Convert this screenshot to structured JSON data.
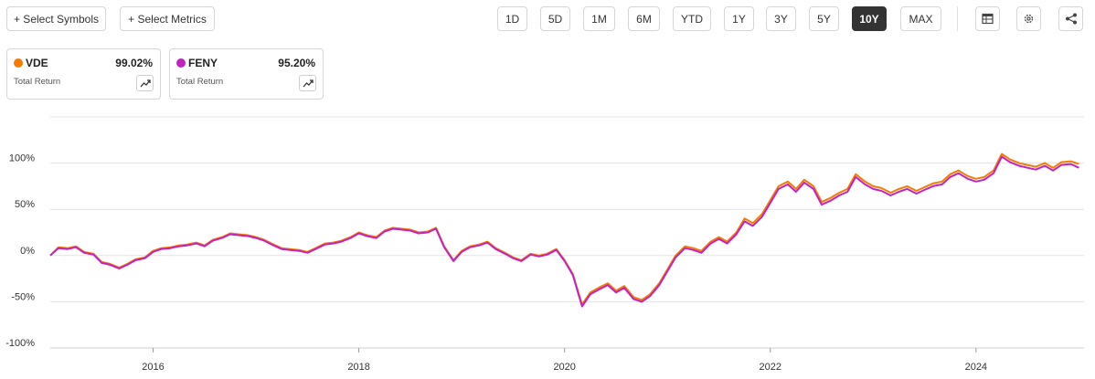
{
  "toolbar": {
    "select_symbols": "+ Select Symbols",
    "select_metrics": "+ Select Metrics",
    "ranges": [
      "1D",
      "5D",
      "1M",
      "6M",
      "YTD",
      "1Y",
      "3Y",
      "5Y",
      "10Y",
      "MAX"
    ],
    "active_range": "10Y",
    "icons": [
      "table-icon",
      "gear-icon",
      "share-icon"
    ]
  },
  "legend": [
    {
      "symbol": "VDE",
      "value": "99.02%",
      "metric": "Total Return",
      "color": "#f57c00"
    },
    {
      "symbol": "FENY",
      "value": "95.20%",
      "metric": "Total Return",
      "color": "#c322c3"
    }
  ],
  "chart_data": {
    "type": "line",
    "x_unit": "year",
    "xlim": [
      2015.0,
      2025.05
    ],
    "ylim": [
      -100,
      150
    ],
    "yticks": [
      -100,
      -50,
      0,
      50,
      100
    ],
    "ytick_labels": [
      "-100%",
      "-50%",
      "0%",
      "50%",
      "100%"
    ],
    "xticks": [
      2016,
      2018,
      2020,
      2022,
      2024
    ],
    "xtick_labels": [
      "2016",
      "2018",
      "2020",
      "2022",
      "2024"
    ],
    "grid": true,
    "series": [
      {
        "name": "VDE",
        "color": "#f57c00",
        "points": [
          [
            2015.0,
            0
          ],
          [
            2015.08,
            9
          ],
          [
            2015.17,
            8
          ],
          [
            2015.25,
            10
          ],
          [
            2015.33,
            4
          ],
          [
            2015.42,
            2
          ],
          [
            2015.5,
            -7
          ],
          [
            2015.58,
            -9
          ],
          [
            2015.67,
            -13
          ],
          [
            2015.75,
            -9
          ],
          [
            2015.83,
            -4
          ],
          [
            2015.92,
            -2
          ],
          [
            2016.0,
            5
          ],
          [
            2016.08,
            8
          ],
          [
            2016.17,
            9
          ],
          [
            2016.25,
            11
          ],
          [
            2016.33,
            12
          ],
          [
            2016.42,
            14
          ],
          [
            2016.5,
            11
          ],
          [
            2016.58,
            17
          ],
          [
            2016.67,
            20
          ],
          [
            2016.75,
            24
          ],
          [
            2016.83,
            23
          ],
          [
            2016.92,
            22
          ],
          [
            2017.0,
            20
          ],
          [
            2017.08,
            17
          ],
          [
            2017.17,
            12
          ],
          [
            2017.25,
            8
          ],
          [
            2017.33,
            7
          ],
          [
            2017.42,
            6
          ],
          [
            2017.5,
            4
          ],
          [
            2017.58,
            8
          ],
          [
            2017.67,
            13
          ],
          [
            2017.75,
            14
          ],
          [
            2017.83,
            16
          ],
          [
            2017.92,
            20
          ],
          [
            2018.0,
            25
          ],
          [
            2018.08,
            22
          ],
          [
            2018.17,
            20
          ],
          [
            2018.25,
            27
          ],
          [
            2018.33,
            30
          ],
          [
            2018.42,
            29
          ],
          [
            2018.5,
            28
          ],
          [
            2018.58,
            25
          ],
          [
            2018.67,
            26
          ],
          [
            2018.75,
            30
          ],
          [
            2018.83,
            10
          ],
          [
            2018.92,
            -5
          ],
          [
            2019.0,
            5
          ],
          [
            2019.08,
            10
          ],
          [
            2019.17,
            12
          ],
          [
            2019.25,
            15
          ],
          [
            2019.33,
            8
          ],
          [
            2019.42,
            3
          ],
          [
            2019.5,
            -2
          ],
          [
            2019.58,
            -5
          ],
          [
            2019.67,
            2
          ],
          [
            2019.75,
            0
          ],
          [
            2019.83,
            2
          ],
          [
            2019.92,
            7
          ],
          [
            2020.0,
            -5
          ],
          [
            2020.08,
            -20
          ],
          [
            2020.17,
            -53
          ],
          [
            2020.25,
            -40
          ],
          [
            2020.33,
            -35
          ],
          [
            2020.42,
            -30
          ],
          [
            2020.5,
            -38
          ],
          [
            2020.58,
            -33
          ],
          [
            2020.67,
            -45
          ],
          [
            2020.75,
            -48
          ],
          [
            2020.83,
            -42
          ],
          [
            2020.92,
            -30
          ],
          [
            2021.0,
            -15
          ],
          [
            2021.08,
            0
          ],
          [
            2021.17,
            10
          ],
          [
            2021.25,
            8
          ],
          [
            2021.33,
            5
          ],
          [
            2021.42,
            15
          ],
          [
            2021.5,
            20
          ],
          [
            2021.58,
            15
          ],
          [
            2021.67,
            25
          ],
          [
            2021.75,
            40
          ],
          [
            2021.83,
            35
          ],
          [
            2021.92,
            45
          ],
          [
            2022.0,
            60
          ],
          [
            2022.08,
            75
          ],
          [
            2022.17,
            80
          ],
          [
            2022.25,
            72
          ],
          [
            2022.33,
            82
          ],
          [
            2022.42,
            75
          ],
          [
            2022.5,
            58
          ],
          [
            2022.58,
            62
          ],
          [
            2022.67,
            68
          ],
          [
            2022.75,
            72
          ],
          [
            2022.83,
            88
          ],
          [
            2022.92,
            80
          ],
          [
            2023.0,
            75
          ],
          [
            2023.08,
            73
          ],
          [
            2023.17,
            68
          ],
          [
            2023.25,
            72
          ],
          [
            2023.33,
            75
          ],
          [
            2023.42,
            70
          ],
          [
            2023.5,
            74
          ],
          [
            2023.58,
            78
          ],
          [
            2023.67,
            80
          ],
          [
            2023.75,
            88
          ],
          [
            2023.83,
            92
          ],
          [
            2023.92,
            86
          ],
          [
            2024.0,
            83
          ],
          [
            2024.08,
            85
          ],
          [
            2024.17,
            92
          ],
          [
            2024.25,
            110
          ],
          [
            2024.33,
            104
          ],
          [
            2024.42,
            100
          ],
          [
            2024.5,
            98
          ],
          [
            2024.58,
            96
          ],
          [
            2024.67,
            100
          ],
          [
            2024.75,
            95
          ],
          [
            2024.83,
            101
          ],
          [
            2024.92,
            102
          ],
          [
            2025.0,
            99
          ]
        ]
      },
      {
        "name": "FENY",
        "color": "#c322c3",
        "points": [
          [
            2015.0,
            0
          ],
          [
            2015.08,
            8
          ],
          [
            2015.17,
            7
          ],
          [
            2015.25,
            9
          ],
          [
            2015.33,
            3
          ],
          [
            2015.42,
            1
          ],
          [
            2015.5,
            -8
          ],
          [
            2015.58,
            -10
          ],
          [
            2015.67,
            -14
          ],
          [
            2015.75,
            -10
          ],
          [
            2015.83,
            -5
          ],
          [
            2015.92,
            -3
          ],
          [
            2016.0,
            4
          ],
          [
            2016.08,
            7
          ],
          [
            2016.17,
            8
          ],
          [
            2016.25,
            10
          ],
          [
            2016.33,
            11
          ],
          [
            2016.42,
            13
          ],
          [
            2016.5,
            10
          ],
          [
            2016.58,
            16
          ],
          [
            2016.67,
            19
          ],
          [
            2016.75,
            23
          ],
          [
            2016.83,
            22
          ],
          [
            2016.92,
            21
          ],
          [
            2017.0,
            19
          ],
          [
            2017.08,
            16
          ],
          [
            2017.17,
            11
          ],
          [
            2017.25,
            7
          ],
          [
            2017.33,
            6
          ],
          [
            2017.42,
            5
          ],
          [
            2017.5,
            3
          ],
          [
            2017.58,
            7
          ],
          [
            2017.67,
            12
          ],
          [
            2017.75,
            13
          ],
          [
            2017.83,
            15
          ],
          [
            2017.92,
            19
          ],
          [
            2018.0,
            24
          ],
          [
            2018.08,
            21
          ],
          [
            2018.17,
            19
          ],
          [
            2018.25,
            26
          ],
          [
            2018.33,
            29
          ],
          [
            2018.42,
            28
          ],
          [
            2018.5,
            27
          ],
          [
            2018.58,
            24
          ],
          [
            2018.67,
            25
          ],
          [
            2018.75,
            29
          ],
          [
            2018.83,
            9
          ],
          [
            2018.92,
            -6
          ],
          [
            2019.0,
            4
          ],
          [
            2019.08,
            9
          ],
          [
            2019.17,
            11
          ],
          [
            2019.25,
            14
          ],
          [
            2019.33,
            7
          ],
          [
            2019.42,
            2
          ],
          [
            2019.5,
            -3
          ],
          [
            2019.58,
            -6
          ],
          [
            2019.67,
            1
          ],
          [
            2019.75,
            -1
          ],
          [
            2019.83,
            1
          ],
          [
            2019.92,
            6
          ],
          [
            2020.0,
            -6
          ],
          [
            2020.08,
            -21
          ],
          [
            2020.17,
            -55
          ],
          [
            2020.25,
            -42
          ],
          [
            2020.33,
            -37
          ],
          [
            2020.42,
            -32
          ],
          [
            2020.5,
            -40
          ],
          [
            2020.58,
            -35
          ],
          [
            2020.67,
            -47
          ],
          [
            2020.75,
            -50
          ],
          [
            2020.83,
            -44
          ],
          [
            2020.92,
            -32
          ],
          [
            2021.0,
            -17
          ],
          [
            2021.08,
            -2
          ],
          [
            2021.17,
            8
          ],
          [
            2021.25,
            6
          ],
          [
            2021.33,
            3
          ],
          [
            2021.42,
            13
          ],
          [
            2021.5,
            18
          ],
          [
            2021.58,
            13
          ],
          [
            2021.67,
            23
          ],
          [
            2021.75,
            37
          ],
          [
            2021.83,
            32
          ],
          [
            2021.92,
            42
          ],
          [
            2022.0,
            57
          ],
          [
            2022.08,
            72
          ],
          [
            2022.17,
            77
          ],
          [
            2022.25,
            69
          ],
          [
            2022.33,
            79
          ],
          [
            2022.42,
            72
          ],
          [
            2022.5,
            55
          ],
          [
            2022.58,
            59
          ],
          [
            2022.67,
            65
          ],
          [
            2022.75,
            69
          ],
          [
            2022.83,
            85
          ],
          [
            2022.92,
            77
          ],
          [
            2023.0,
            72
          ],
          [
            2023.08,
            70
          ],
          [
            2023.17,
            65
          ],
          [
            2023.25,
            69
          ],
          [
            2023.33,
            72
          ],
          [
            2023.42,
            67
          ],
          [
            2023.5,
            71
          ],
          [
            2023.58,
            75
          ],
          [
            2023.67,
            77
          ],
          [
            2023.75,
            85
          ],
          [
            2023.83,
            89
          ],
          [
            2023.92,
            83
          ],
          [
            2024.0,
            80
          ],
          [
            2024.08,
            82
          ],
          [
            2024.17,
            89
          ],
          [
            2024.25,
            107
          ],
          [
            2024.33,
            101
          ],
          [
            2024.42,
            97
          ],
          [
            2024.5,
            95
          ],
          [
            2024.58,
            93
          ],
          [
            2024.67,
            97
          ],
          [
            2024.75,
            92
          ],
          [
            2024.83,
            98
          ],
          [
            2024.92,
            99
          ],
          [
            2025.0,
            95
          ]
        ]
      }
    ]
  }
}
